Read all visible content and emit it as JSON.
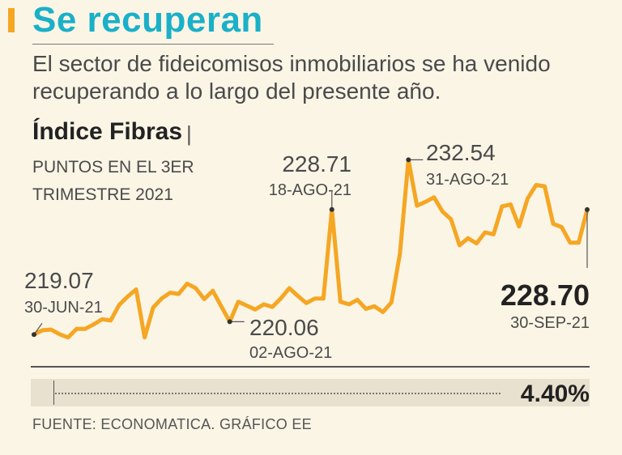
{
  "header": {
    "title": "Se recuperan",
    "subtitle": "El sector de fideicomisos inmobiliarios se ha venido recuperando a lo largo del presente año."
  },
  "chart_header": {
    "index_name": "Índice Fibras",
    "separator": "|",
    "units": "PUNTOS EN EL 3ER TRIMESTRE 2021"
  },
  "annotations": {
    "start": {
      "value": "219.07",
      "date": "30-JUN-21"
    },
    "low": {
      "value": "220.06",
      "date": "02-AGO-21"
    },
    "peak1": {
      "value": "228.71",
      "date": "18-AGO-21"
    },
    "peak2": {
      "value": "232.54",
      "date": "31-AGO-21"
    },
    "end": {
      "value": "228.70",
      "date": "30-SEP-21"
    }
  },
  "change": {
    "value": "4.40%"
  },
  "source": "FUENTE: ECONOMATICA. GRÁFICO EE",
  "colors": {
    "title": "#1ab0c8",
    "accent": "#f5a623",
    "line": "#f5a623",
    "background": "#fbf5e6"
  },
  "chart_data": {
    "type": "line",
    "title": "Índice Fibras",
    "ylabel": "PUNTOS EN EL 3ER TRIMESTRE 2021",
    "xlabel": "",
    "x_start": "30-JUN-21",
    "x_end": "30-SEP-21",
    "ylim": [
      217.4,
      233.0
    ],
    "values": [
      219.07,
      219.4,
      219.45,
      219.1,
      218.85,
      219.5,
      219.5,
      219.85,
      220.25,
      220.15,
      221.35,
      222.0,
      222.55,
      218.85,
      221.15,
      221.85,
      222.3,
      222.2,
      223.0,
      222.65,
      221.8,
      222.45,
      221.25,
      220.06,
      221.6,
      221.3,
      221.0,
      221.4,
      221.2,
      221.85,
      222.65,
      222.05,
      221.5,
      221.85,
      221.85,
      228.71,
      221.6,
      221.4,
      221.75,
      221.05,
      221.25,
      220.8,
      221.55,
      225.3,
      232.54,
      229.0,
      229.3,
      229.65,
      228.55,
      227.95,
      225.95,
      226.5,
      226.1,
      226.95,
      226.8,
      228.95,
      229.1,
      227.4,
      229.55,
      230.6,
      230.5,
      227.6,
      227.35,
      226.15,
      226.15,
      228.7
    ],
    "labeled_points": [
      {
        "date": "30-JUN-21",
        "value": 219.07
      },
      {
        "date": "02-AGO-21",
        "value": 220.06
      },
      {
        "date": "18-AGO-21",
        "value": 228.71
      },
      {
        "date": "31-AGO-21",
        "value": 232.54
      },
      {
        "date": "30-SEP-21",
        "value": 228.7
      }
    ],
    "change_pct": "4.40%"
  }
}
